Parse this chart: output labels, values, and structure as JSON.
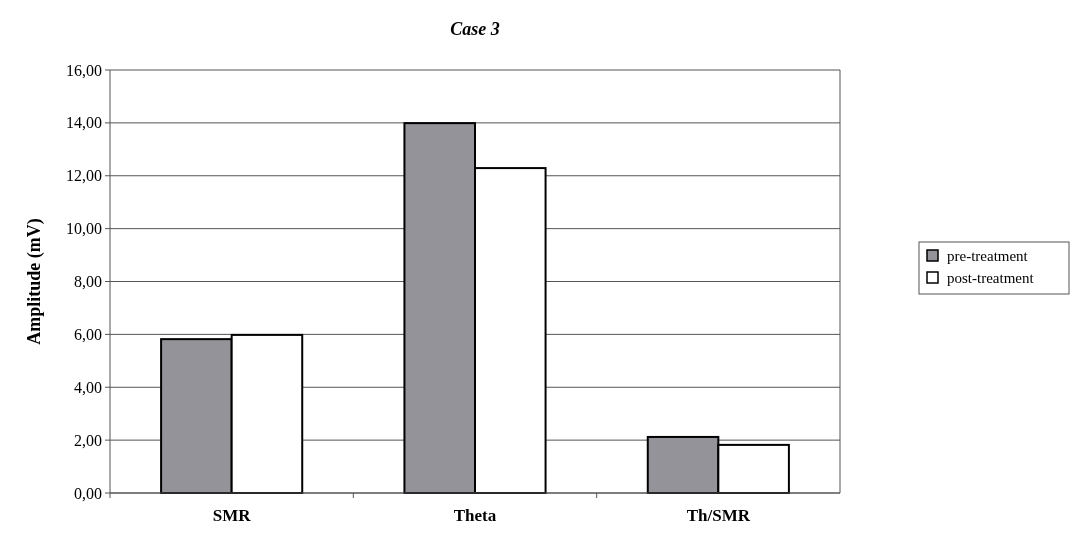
{
  "chart_data": {
    "type": "bar",
    "title": "Case 3",
    "ylabel": "Amplitude (mV)",
    "categories": [
      "SMR",
      "Theta",
      "Th/SMR"
    ],
    "series": [
      {
        "name": "pre-treatment",
        "color": "#939399",
        "values": [
          5.82,
          13.99,
          2.12
        ]
      },
      {
        "name": "post-treatment",
        "color": "#ffffff",
        "values": [
          5.98,
          12.29,
          1.82
        ]
      }
    ],
    "ylim": [
      0,
      16
    ],
    "yticks": [
      {
        "value": 0,
        "label": "0,00"
      },
      {
        "value": 2,
        "label": "2,00"
      },
      {
        "value": 4,
        "label": "4,00"
      },
      {
        "value": 6,
        "label": "6,00"
      },
      {
        "value": 8,
        "label": "8,00"
      },
      {
        "value": 10,
        "label": "10,00"
      },
      {
        "value": 12,
        "label": "12,00"
      },
      {
        "value": 14,
        "label": "14,00"
      },
      {
        "value": 16,
        "label": "16,00"
      }
    ],
    "grid": "y",
    "legend": "right"
  }
}
